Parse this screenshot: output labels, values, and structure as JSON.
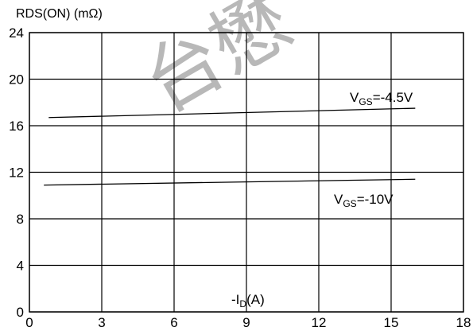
{
  "chart_data": {
    "type": "line",
    "ylabel": "RDS(ON) (mΩ)",
    "xlabel_prefix": "-I",
    "xlabel_sub": "D",
    "xlabel_suffix": "(A)",
    "xlim": [
      0,
      18
    ],
    "ylim": [
      0,
      24
    ],
    "x_ticks": [
      "0",
      "3",
      "6",
      "9",
      "12",
      "15",
      "18"
    ],
    "y_ticks": [
      "0",
      "4",
      "8",
      "12",
      "16",
      "20",
      "24"
    ],
    "grid": true,
    "series": [
      {
        "name": "VGS=-4.5V",
        "label_main": "V",
        "label_sub": "GS",
        "label_value": "=-4.5V",
        "x": [
          0.8,
          16
        ],
        "y": [
          16.7,
          17.5
        ]
      },
      {
        "name": "VGS=-10V",
        "label_main": "V",
        "label_sub": "GS",
        "label_value": "=-10V",
        "x": [
          0.6,
          16
        ],
        "y": [
          10.9,
          11.4
        ]
      }
    ],
    "watermark": "台懋"
  }
}
